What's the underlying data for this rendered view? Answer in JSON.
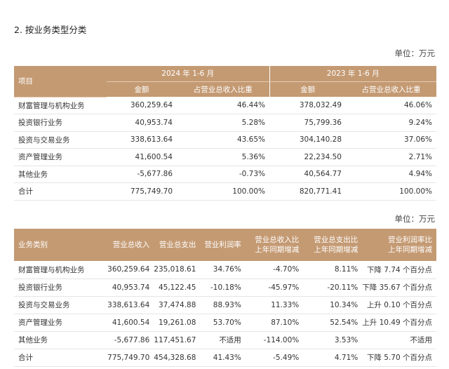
{
  "section_title": "2. 按业务类型分类",
  "unit_label": "单位：万元",
  "table1": {
    "col_item": "项目",
    "period_2024": "2024 年 1-6 月",
    "period_2023": "2023 年 1-6 月",
    "sub_amount": "金额",
    "sub_ratio": "占营业总收入比重",
    "rows": [
      {
        "name": "财富管理与机构业务",
        "a2024": "360,259.64",
        "r2024": "46.44%",
        "a2023": "378,032.49",
        "r2023": "46.06%"
      },
      {
        "name": "投资银行业务",
        "a2024": "40,953.74",
        "r2024": "5.28%",
        "a2023": "75,799.36",
        "r2023": "9.24%"
      },
      {
        "name": "投资与交易业务",
        "a2024": "338,613.64",
        "r2024": "43.65%",
        "a2023": "304,140.28",
        "r2023": "37.06%"
      },
      {
        "name": "资产管理业务",
        "a2024": "41,600.54",
        "r2024": "5.36%",
        "a2023": "22,234.50",
        "r2023": "2.71%"
      },
      {
        "name": "其他业务",
        "a2024": "-5,677.86",
        "r2024": "-0.73%",
        "a2023": "40,564.77",
        "r2023": "4.94%"
      },
      {
        "name": "合计",
        "a2024": "775,749.70",
        "r2024": "100.00%",
        "a2023": "820,771.41",
        "r2023": "100.00%"
      }
    ]
  },
  "table2": {
    "headers": {
      "category": "业务类别",
      "revenue": "营业总收入",
      "cost": "营业总支出",
      "margin": "营业利润率",
      "rev_change_1": "营业总收入比",
      "rev_change_2": "上年同期增减",
      "cost_change_1": "营业总支出比",
      "cost_change_2": "上年同期增减",
      "margin_change_1": "营业利润率比",
      "margin_change_2": "上年同期增减"
    },
    "rows": [
      {
        "name": "财富管理与机构业务",
        "revenue": "360,259.64",
        "cost": "235,018.61",
        "margin": "34.76%",
        "rev_chg": "-4.70%",
        "cost_chg": "8.11%",
        "margin_chg": "下降 7.74 个百分点"
      },
      {
        "name": "投资银行业务",
        "revenue": "40,953.74",
        "cost": "45,122.45",
        "margin": "-10.18%",
        "rev_chg": "-45.97%",
        "cost_chg": "-20.11%",
        "margin_chg": "下降 35.67 个百分点"
      },
      {
        "name": "投资与交易业务",
        "revenue": "338,613.64",
        "cost": "37,474.88",
        "margin": "88.93%",
        "rev_chg": "11.33%",
        "cost_chg": "10.34%",
        "margin_chg": "上升 0.10 个百分点"
      },
      {
        "name": "资产管理业务",
        "revenue": "41,600.54",
        "cost": "19,261.08",
        "margin": "53.70%",
        "rev_chg": "87.10%",
        "cost_chg": "52.54%",
        "margin_chg": "上升 10.49 个百分点"
      },
      {
        "name": "其他业务",
        "revenue": "-5,677.86",
        "cost": "117,451.67",
        "margin": "不适用",
        "rev_chg": "-114.00%",
        "cost_chg": "3.53%",
        "margin_chg": "不适用"
      },
      {
        "name": "合计",
        "revenue": "775,749.70",
        "cost": "454,328.68",
        "margin": "41.43%",
        "rev_chg": "-5.49%",
        "cost_chg": "4.71%",
        "margin_chg": "下降 5.70 个百分点"
      }
    ]
  },
  "colors": {
    "header_bg": "#c49a73",
    "header_text": "#ffffff"
  }
}
